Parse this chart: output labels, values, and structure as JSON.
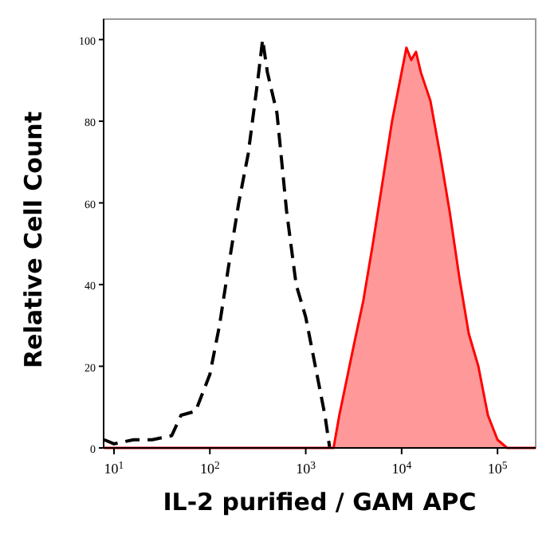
{
  "chart_data": {
    "type": "line",
    "xlabel": "IL-2 purified / GAM APC",
    "ylabel": "Relative Cell Count",
    "log": "x",
    "grid": false,
    "xlim": [
      7.8,
      250000
    ],
    "xticks": [
      {
        "value": 10,
        "label": "10$^{1}$"
      },
      {
        "value": 100,
        "label": "10$^{2}$"
      },
      {
        "value": 1000,
        "label": "10$^{3}$"
      },
      {
        "value": 10000,
        "label": "10$^{4}$"
      },
      {
        "value": 100000,
        "label": "10$^{5}$"
      }
    ],
    "ylim": [
      0,
      105
    ],
    "yticks": [
      0,
      20,
      40,
      60,
      80,
      100
    ],
    "series": [
      {
        "line_style": "dashed",
        "color": "#000000",
        "x": [
          7.9,
          10,
          16,
          25,
          40,
          50,
          71,
          100,
          126,
          158,
          200,
          251,
          316,
          355,
          398,
          501,
          631,
          794,
          1000,
          1259,
          1585,
          1778
        ],
        "values": [
          2,
          1,
          2,
          2,
          3,
          8,
          9,
          18,
          30,
          45,
          60,
          72,
          90,
          100,
          92,
          82,
          58,
          40,
          32,
          20,
          8,
          0
        ]
      },
      {
        "type": "area",
        "line_style": "solid",
        "color": "#ff0000",
        "x": [
          7.9,
          1950,
          2239,
          3162,
          3981,
          5012,
          6310,
          7943,
          10000,
          11220,
          12589,
          14125,
          15849,
          19953,
          25119,
          31623,
          39811,
          50119,
          63096,
          79433,
          100000,
          125893,
          250000
        ],
        "values": [
          0,
          0,
          8,
          25,
          36,
          50,
          65,
          80,
          92,
          98,
          95,
          97,
          92,
          85,
          72,
          58,
          42,
          28,
          20,
          8,
          2,
          0,
          0
        ]
      }
    ]
  }
}
